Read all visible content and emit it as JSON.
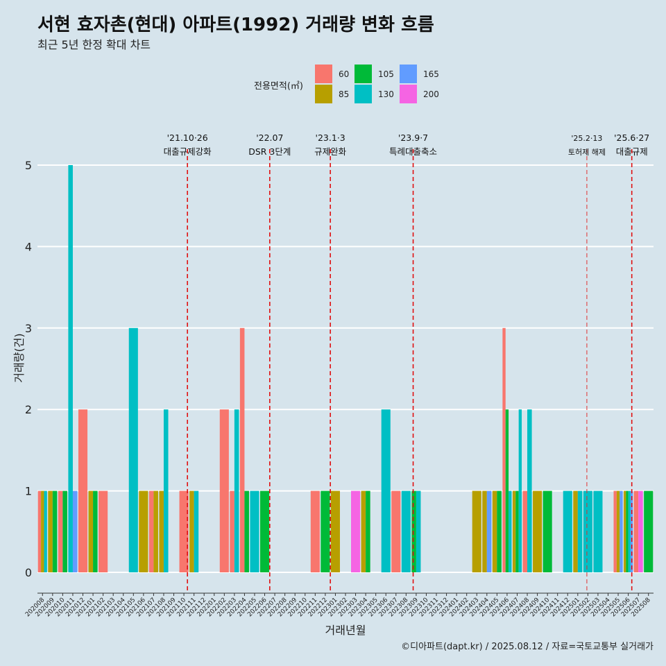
{
  "header": {
    "title": "서현 효자촌(현대) 아파트(1992) 거래량 변화 흐름",
    "subtitle": "최근 5년 한정 확대 차트"
  },
  "legend": {
    "title": "전용면적(㎡)",
    "items": [
      {
        "label": "60",
        "color": "#F8766D"
      },
      {
        "label": "85",
        "color": "#B79F00"
      },
      {
        "label": "105",
        "color": "#00BA38"
      },
      {
        "label": "130",
        "color": "#00BFC4"
      },
      {
        "label": "165",
        "color": "#619CFF"
      },
      {
        "label": "200",
        "color": "#F564E3"
      }
    ]
  },
  "axes": {
    "xlabel": "거래년월",
    "ylabel": "거래량(건)"
  },
  "caption": "©디아파트(dapt.kr) / 2025.08.12 / 자료=국토교통부 실거래가",
  "annotations": [
    {
      "date": "202110",
      "offset": 0.85,
      "line1": "'21.10·26",
      "line2": "대출규제강화",
      "small": false
    },
    {
      "date": "202207",
      "offset": 0.0,
      "line1": "'22.07",
      "line2": "DSR 3단계",
      "small": false
    },
    {
      "date": "202301",
      "offset": 0.0,
      "line1": "'23.1·3",
      "line2": "규제완화",
      "small": false
    },
    {
      "date": "202309",
      "offset": 0.2,
      "line1": "'23.9·7",
      "line2": "특례대출축소",
      "small": false
    },
    {
      "date": "202502",
      "offset": 0.4,
      "line1": "'25.2·13",
      "line2": "토허제 해제",
      "small": true
    },
    {
      "date": "202506",
      "offset": 0.85,
      "line1": "'25.6·27",
      "line2": "대출규제",
      "small": false
    }
  ],
  "chart_data": {
    "type": "bar",
    "x": [
      "202008",
      "202009",
      "202010",
      "202011",
      "202012",
      "202101",
      "202102",
      "202103",
      "202104",
      "202105",
      "202106",
      "202107",
      "202108",
      "202109",
      "202110",
      "202111",
      "202112",
      "202201",
      "202202",
      "202203",
      "202204",
      "202205",
      "202206",
      "202207",
      "202208",
      "202209",
      "202210",
      "202211",
      "202212",
      "202301",
      "202302",
      "202303",
      "202304",
      "202305",
      "202306",
      "202307",
      "202308",
      "202309",
      "202310",
      "202311",
      "202312",
      "202401",
      "202402",
      "202403",
      "202404",
      "202405",
      "202406",
      "202407",
      "202408",
      "202409",
      "202410",
      "202411",
      "202412",
      "202501",
      "202502",
      "202503",
      "202504",
      "202505",
      "202506",
      "202507",
      "202508"
    ],
    "ylim": [
      0,
      5
    ],
    "yticks": [
      0,
      1,
      2,
      3,
      4,
      5
    ],
    "xlabel": "거래년월",
    "ylabel": "거래량(건)",
    "series": [
      {
        "name": "60",
        "color": "#F8766D",
        "values": [
          1,
          0,
          1,
          0,
          2,
          0,
          1,
          0,
          0,
          0,
          0,
          1,
          0,
          0,
          1,
          0,
          0,
          0,
          2,
          1,
          3,
          0,
          0,
          0,
          0,
          0,
          0,
          1,
          0,
          0,
          0,
          0,
          0,
          0,
          0,
          1,
          0,
          0,
          0,
          0,
          0,
          0,
          0,
          0,
          0,
          0,
          3,
          0,
          1,
          0,
          0,
          0,
          0,
          0,
          0,
          0,
          0,
          1,
          0,
          1,
          0
        ]
      },
      {
        "name": "85",
        "color": "#B79F00",
        "values": [
          1,
          1,
          0,
          0,
          0,
          1,
          0,
          0,
          0,
          0,
          1,
          1,
          1,
          0,
          0,
          1,
          0,
          0,
          0,
          0,
          0,
          0,
          0,
          0,
          0,
          0,
          0,
          0,
          0,
          1,
          0,
          0,
          1,
          0,
          0,
          0,
          0,
          0,
          0,
          0,
          0,
          0,
          0,
          1,
          1,
          1,
          0,
          1,
          0,
          1,
          0,
          0,
          0,
          1,
          0,
          0,
          0,
          1,
          1,
          0,
          0
        ]
      },
      {
        "name": "105",
        "color": "#00BA38",
        "values": [
          0,
          1,
          1,
          0,
          0,
          1,
          0,
          0,
          0,
          0,
          0,
          0,
          0,
          0,
          0,
          0,
          0,
          0,
          0,
          0,
          1,
          0,
          1,
          0,
          0,
          0,
          0,
          0,
          1,
          0,
          0,
          0,
          1,
          0,
          0,
          0,
          0,
          1,
          0,
          0,
          0,
          0,
          0,
          0,
          0,
          1,
          2,
          1,
          0,
          0,
          1,
          0,
          0,
          0,
          0,
          0,
          0,
          0,
          1,
          0,
          1
        ]
      },
      {
        "name": "130",
        "color": "#00BFC4",
        "values": [
          1,
          0,
          0,
          5,
          0,
          0,
          0,
          0,
          0,
          3,
          0,
          0,
          2,
          0,
          0,
          1,
          0,
          0,
          0,
          2,
          0,
          1,
          0,
          0,
          0,
          0,
          0,
          0,
          0,
          0,
          0,
          0,
          0,
          0,
          2,
          0,
          1,
          1,
          0,
          0,
          0,
          0,
          0,
          0,
          0,
          0,
          1,
          2,
          2,
          0,
          0,
          0,
          1,
          1,
          1,
          1,
          0,
          0,
          1,
          0,
          0
        ]
      },
      {
        "name": "165",
        "color": "#619CFF",
        "values": [
          0,
          0,
          0,
          1,
          0,
          0,
          0,
          0,
          0,
          0,
          0,
          0,
          0,
          0,
          0,
          0,
          0,
          0,
          0,
          0,
          0,
          0,
          0,
          0,
          0,
          0,
          0,
          0,
          0,
          0,
          0,
          0,
          0,
          0,
          0,
          0,
          0,
          0,
          0,
          0,
          0,
          0,
          0,
          0,
          1,
          0,
          0,
          0,
          0,
          0,
          0,
          0,
          0,
          0,
          0,
          0,
          0,
          1,
          1,
          0,
          0
        ]
      },
      {
        "name": "200",
        "color": "#F564E3",
        "values": [
          0,
          0,
          0,
          0,
          0,
          0,
          0,
          0,
          0,
          0,
          0,
          0,
          0,
          0,
          0,
          0,
          0,
          0,
          0,
          0,
          0,
          0,
          0,
          0,
          0,
          0,
          0,
          0,
          0,
          0,
          0,
          1,
          0,
          0,
          0,
          0,
          0,
          0,
          0,
          0,
          0,
          0,
          0,
          0,
          0,
          0,
          0,
          0,
          0,
          0,
          0,
          0,
          0,
          0,
          0,
          0,
          0,
          0,
          0,
          1,
          0
        ]
      }
    ]
  }
}
